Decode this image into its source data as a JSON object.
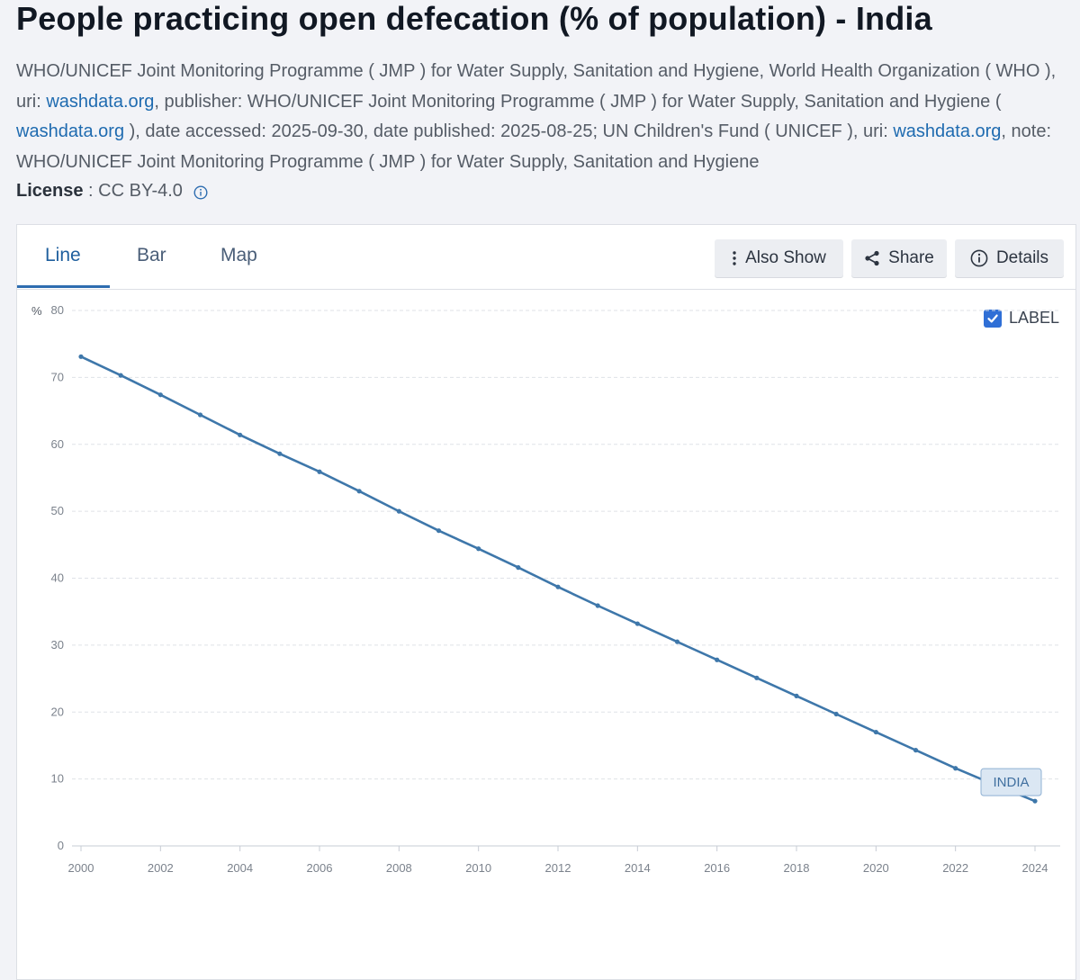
{
  "page": {
    "title": "People practicing open defecation (% of population) - India"
  },
  "source": {
    "seg1": "WHO/UNICEF Joint Monitoring Programme ( JMP ) for Water Supply, Sanitation and Hygiene, World Health Organization ( WHO ), uri: ",
    "link1": "washdata.org",
    "seg2": ", publisher: WHO/UNICEF Joint Monitoring Programme ( JMP ) for Water Supply, Sanitation and Hygiene ( ",
    "link2": "washdata.org",
    "seg3": " ), date accessed: 2025-09-30, date published: 2025-08-25; UN Children's Fund ( UNICEF ), uri: ",
    "link3": "washdata.org",
    "seg4": ", note: WHO/UNICEF Joint Monitoring Programme ( JMP ) for Water Supply, Sanitation and Hygiene"
  },
  "license": {
    "label": "License",
    "separator": " : ",
    "value": "CC BY-4.0",
    "icon": "info-circle-icon"
  },
  "tabs": [
    {
      "label": "Line",
      "active": true
    },
    {
      "label": "Bar",
      "active": false
    },
    {
      "label": "Map",
      "active": false
    }
  ],
  "toolbar": {
    "also_show": "Also Show",
    "share": "Share",
    "details": "Details",
    "also_show_icon": "vertical-dots-icon",
    "share_icon": "share-icon",
    "details_icon": "info-circle-icon"
  },
  "legend": {
    "checkbox_label": "LABEL",
    "checked": true
  },
  "colors": {
    "line": "#3e77aa",
    "accent": "#2e6db0",
    "link": "#1f6bb0",
    "label_bg": "#dbe7f3"
  },
  "chart_data": {
    "type": "line",
    "title": "",
    "xlabel": "",
    "ylabel": "%",
    "ylim": [
      0,
      80
    ],
    "yticks": [
      0,
      10,
      20,
      30,
      40,
      50,
      60,
      70,
      80
    ],
    "xlim": [
      2000,
      2024
    ],
    "xticks": [
      "2000",
      "2002",
      "2004",
      "2006",
      "2008",
      "2010",
      "2012",
      "2014",
      "2016",
      "2018",
      "2020",
      "2022",
      "2024"
    ],
    "grid": true,
    "series": [
      {
        "name": "INDIA",
        "x": [
          2000,
          2001,
          2002,
          2003,
          2004,
          2005,
          2006,
          2007,
          2008,
          2009,
          2010,
          2011,
          2012,
          2013,
          2014,
          2015,
          2016,
          2017,
          2018,
          2019,
          2020,
          2021,
          2022,
          2023,
          2024
        ],
        "values": [
          73.1,
          70.3,
          67.4,
          64.4,
          61.4,
          58.6,
          55.9,
          53.0,
          50.0,
          47.1,
          44.4,
          41.6,
          38.7,
          35.9,
          33.2,
          30.5,
          27.8,
          25.1,
          22.4,
          19.7,
          17.0,
          14.3,
          11.6,
          9.1,
          6.7
        ]
      }
    ]
  }
}
